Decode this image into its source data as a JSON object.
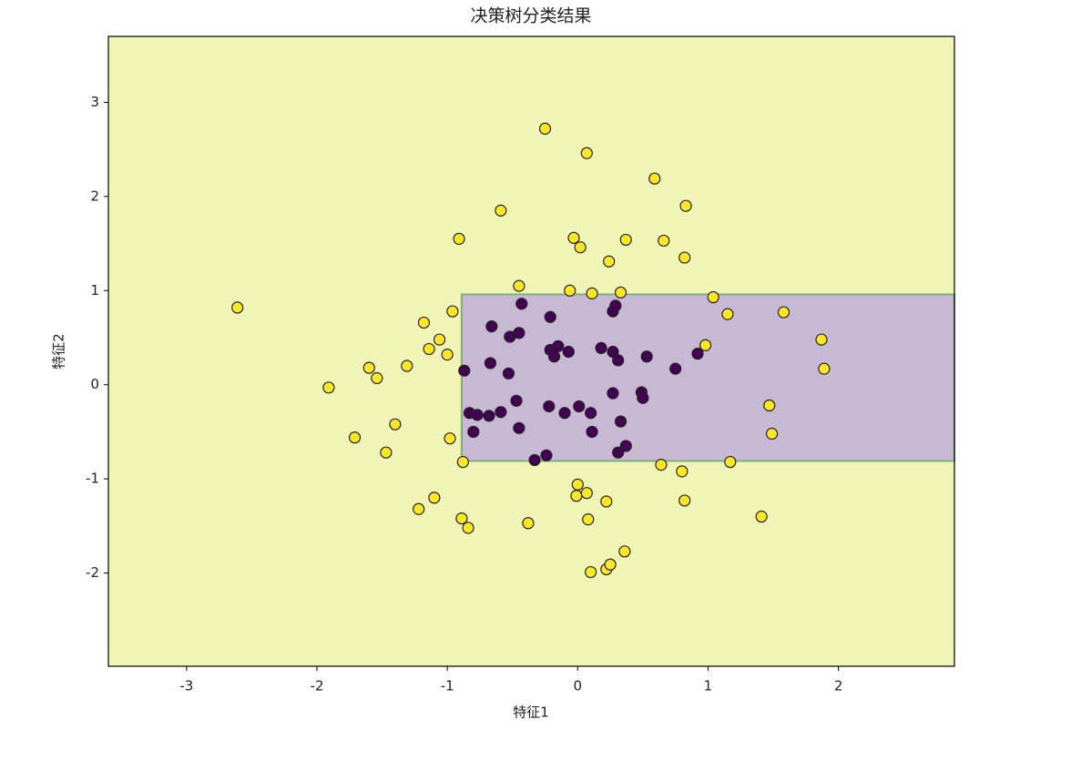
{
  "chart_data": {
    "type": "scatter",
    "title": "决策树分类结果",
    "xlabel": "特征1",
    "ylabel": "特征2",
    "xlim": [
      -3.6,
      2.89
    ],
    "ylim": [
      -2.99,
      3.7
    ],
    "xticks": [
      -3,
      -2,
      -1,
      0,
      1,
      2
    ],
    "yticks": [
      -2,
      -1,
      0,
      1,
      2,
      3
    ],
    "background_color": "#f0f5b5",
    "region": {
      "x": [
        -0.89,
        2.89
      ],
      "y": [
        -0.81,
        0.96
      ],
      "color": "#c7b9d4",
      "edge_color": "#7fb07f"
    },
    "series": [
      {
        "color": "#fde725",
        "x": [
          -2.61,
          -1.91,
          -1.71,
          -1.6,
          -1.54,
          -1.47,
          -1.4,
          -1.31,
          -1.22,
          -1.18,
          -1.14,
          -1.1,
          -1.06,
          -1.0,
          -0.98,
          -0.96,
          -0.91,
          -0.89,
          -0.88,
          -0.84,
          -0.59,
          -0.45,
          -0.38,
          -0.25,
          -0.06,
          -0.03,
          -0.01,
          0.0,
          0.02,
          0.07,
          0.07,
          0.08,
          0.1,
          0.22,
          0.24,
          0.22,
          0.25,
          0.33,
          0.36,
          0.37,
          0.59,
          0.64,
          0.66,
          0.8,
          0.82,
          0.83,
          0.82,
          0.98,
          1.04,
          1.15,
          1.17,
          1.41,
          1.47,
          1.49,
          1.58,
          1.87,
          1.89,
          0.11
        ],
        "y": [
          0.82,
          -0.03,
          -0.56,
          0.18,
          0.07,
          -0.72,
          -0.42,
          0.2,
          -1.32,
          0.66,
          0.38,
          -1.2,
          0.48,
          0.32,
          -0.57,
          0.78,
          1.55,
          -1.42,
          -0.82,
          -1.52,
          1.85,
          1.05,
          -1.47,
          2.72,
          1.0,
          1.56,
          -1.18,
          -1.06,
          1.46,
          -1.15,
          2.46,
          -1.43,
          -1.99,
          -1.24,
          1.31,
          -1.96,
          -1.91,
          0.98,
          -1.77,
          1.54,
          2.19,
          -0.85,
          1.53,
          -0.92,
          1.35,
          1.9,
          -1.23,
          0.42,
          0.93,
          0.75,
          -0.82,
          -1.4,
          -0.22,
          -0.52,
          0.77,
          0.48,
          0.17,
          0.97
        ]
      },
      {
        "color": "#440154",
        "x": [
          -0.87,
          -0.83,
          -0.8,
          -0.77,
          -0.68,
          -0.66,
          -0.67,
          -0.59,
          -0.53,
          -0.52,
          -0.45,
          -0.47,
          -0.45,
          -0.43,
          -0.33,
          -0.24,
          -0.22,
          -0.21,
          -0.21,
          -0.18,
          -0.15,
          -0.1,
          -0.07,
          0.01,
          0.1,
          0.11,
          0.18,
          0.27,
          0.27,
          0.27,
          0.29,
          0.31,
          0.31,
          0.33,
          0.37,
          0.49,
          0.5,
          0.53,
          0.75,
          0.92
        ],
        "y": [
          0.15,
          -0.3,
          -0.5,
          -0.32,
          -0.33,
          0.62,
          0.23,
          -0.29,
          0.12,
          0.51,
          0.55,
          -0.17,
          -0.46,
          0.86,
          -0.8,
          -0.75,
          -0.23,
          0.72,
          0.37,
          0.3,
          0.41,
          -0.3,
          0.35,
          -0.23,
          -0.3,
          -0.5,
          0.39,
          0.35,
          -0.09,
          0.78,
          0.84,
          0.26,
          -0.72,
          -0.39,
          -0.65,
          -0.08,
          -0.14,
          0.3,
          0.17,
          0.33
        ]
      }
    ]
  }
}
